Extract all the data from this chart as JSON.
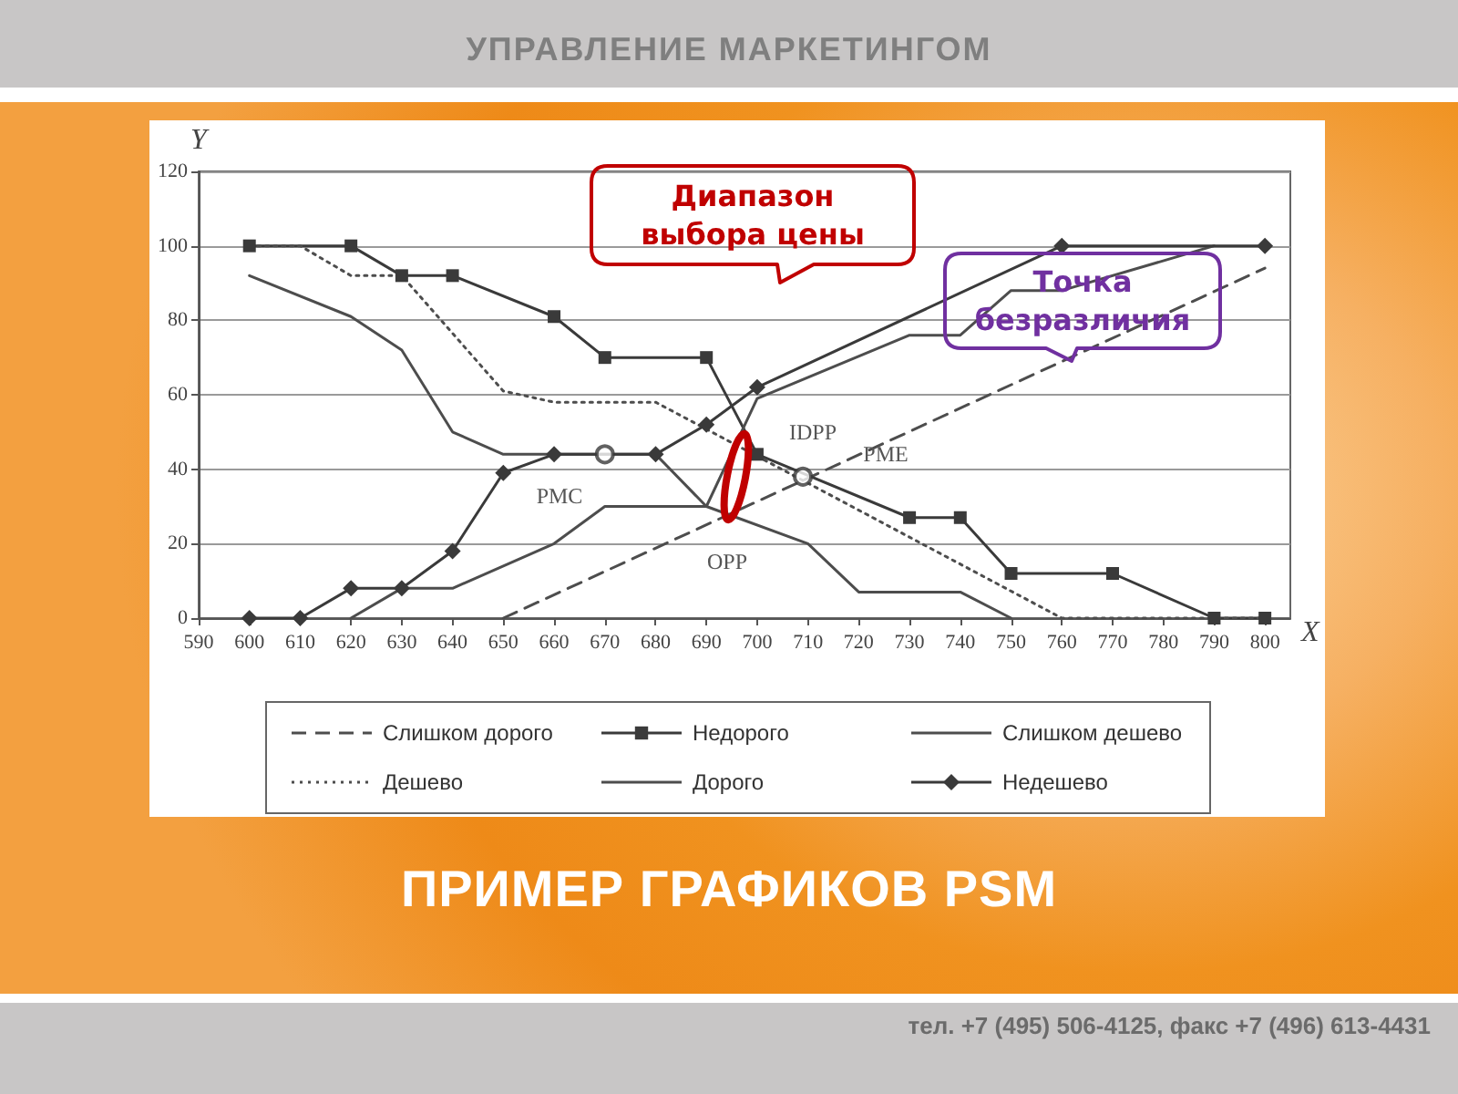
{
  "chart_data": {
    "type": "line",
    "title": "ПРИМЕР ГРАФИКОВ PSM",
    "subtitle": "УПРАВЛЕНИЕ МАРКЕТИНГОМ",
    "xlabel": "X",
    "ylabel": "Y",
    "xlim": [
      590,
      805
    ],
    "xticks": [
      590,
      600,
      610,
      620,
      630,
      640,
      650,
      660,
      670,
      680,
      690,
      700,
      710,
      720,
      730,
      740,
      750,
      760,
      770,
      780,
      790,
      800
    ],
    "ylim": [
      0,
      120
    ],
    "yticks": [
      0,
      20,
      40,
      60,
      80,
      100,
      120
    ],
    "grid": "y",
    "legend": "bottom",
    "series": [
      {
        "name": "Слишком дорого",
        "color": "#4d4d4d",
        "line_style": "dashed",
        "marker": "none",
        "x": [
          650,
          800
        ],
        "values": [
          0,
          94
        ]
      },
      {
        "name": "Недорого",
        "color": "#3a3a3a",
        "line_style": "solid",
        "marker": "square",
        "x": [
          600,
          620,
          630,
          640,
          660,
          670,
          690,
          700,
          730,
          740,
          750,
          770,
          790,
          800
        ],
        "values": [
          100,
          100,
          92,
          92,
          81,
          70,
          70,
          44,
          27,
          27,
          12,
          12,
          0,
          0
        ]
      },
      {
        "name": "Слишком дешево",
        "color": "#4d4d4d",
        "line_style": "solid",
        "marker": "none",
        "x": [
          600,
          620,
          630,
          640,
          650,
          680,
          690,
          710,
          720,
          740,
          750
        ],
        "values": [
          92,
          81,
          72,
          50,
          44,
          44,
          30,
          20,
          7,
          7,
          0
        ]
      },
      {
        "name": "Дешево",
        "color": "#4d4d4d",
        "line_style": "dotted",
        "marker": "none",
        "x": [
          600,
          610,
          620,
          630,
          650,
          660,
          680,
          760,
          800
        ],
        "values": [
          100,
          100,
          92,
          92,
          61,
          58,
          58,
          0,
          0
        ]
      },
      {
        "name": "Дорого",
        "color": "#4d4d4d",
        "line_style": "solid",
        "marker": "none",
        "x": [
          620,
          630,
          640,
          660,
          670,
          690,
          700,
          730,
          740,
          750,
          760,
          790
        ],
        "values": [
          0,
          8,
          8,
          20,
          30,
          30,
          59,
          76,
          76,
          88,
          88,
          100
        ]
      },
      {
        "name": "Недешево",
        "color": "#3a3a3a",
        "line_style": "solid",
        "marker": "diamond",
        "x": [
          600,
          610,
          620,
          630,
          640,
          650,
          660,
          680,
          690,
          700,
          760,
          800
        ],
        "values": [
          0,
          0,
          8,
          8,
          18,
          39,
          44,
          44,
          52,
          62,
          100,
          100
        ]
      },
      {
        "type": "scatter",
        "color": "#3a3a3a",
        "marker": "circle",
        "x": [
          670,
          709
        ],
        "values": [
          44,
          38
        ]
      }
    ],
    "annotations": [
      "Диапазон выбора цены",
      "Точка безразличия",
      "PMC",
      "IDPP",
      "PME",
      "OPP",
      "тел. +7 (495) 506-4125, факс +7 (496) 613-4431"
    ]
  }
}
